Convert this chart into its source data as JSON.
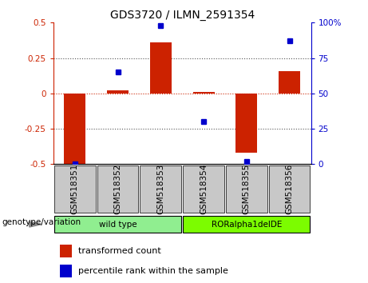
{
  "title": "GDS3720 / ILMN_2591354",
  "categories": [
    "GSM518351",
    "GSM518352",
    "GSM518353",
    "GSM518354",
    "GSM518355",
    "GSM518356"
  ],
  "red_bars": [
    -0.5,
    0.02,
    0.36,
    0.01,
    -0.42,
    0.16
  ],
  "blue_percentiles": [
    0,
    65,
    98,
    30,
    2,
    87
  ],
  "red_ylim": [
    -0.5,
    0.5
  ],
  "blue_ylim": [
    0,
    100
  ],
  "red_yticks": [
    -0.5,
    -0.25,
    0.0,
    0.25,
    0.5
  ],
  "blue_yticks": [
    0,
    25,
    50,
    75,
    100
  ],
  "red_ytick_labels": [
    "-0.5",
    "-0.25",
    "0",
    "0.25",
    "0.5"
  ],
  "blue_ytick_labels": [
    "0",
    "25",
    "50",
    "75",
    "100%"
  ],
  "group_label": "genotype/variation",
  "group1_label": "wild type",
  "group2_label": "RORalpha1delDE",
  "group1_color": "#90EE90",
  "group2_color": "#7CFC00",
  "legend_red": "transformed count",
  "legend_blue": "percentile rank within the sample",
  "bar_color": "#CC2200",
  "dot_color": "#0000CC",
  "dotted_line_color": "#555555",
  "zero_line_color": "#CC2200",
  "cell_bg_color": "#C8C8C8",
  "bar_width": 0.5,
  "title_fontsize": 10,
  "tick_fontsize": 7.5,
  "label_fontsize": 7.5,
  "legend_fontsize": 8
}
